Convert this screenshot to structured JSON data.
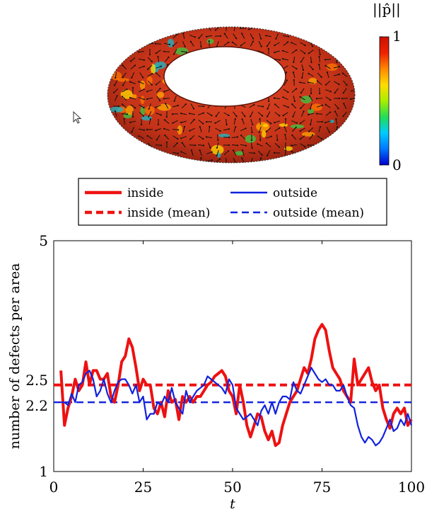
{
  "figure": {
    "colorbar": {
      "label": "||p̂||",
      "tick_max": "1",
      "tick_min": "0",
      "colors": [
        "#0000cc",
        "#0077ff",
        "#00ccff",
        "#22dd55",
        "#aaee00",
        "#ffdd00",
        "#ff8800",
        "#ee2200",
        "#cc1100"
      ]
    },
    "cursor_icon": "mouse-pointer-icon",
    "torus_icon": "torus-vector-field-render"
  },
  "chart_data": {
    "type": "line",
    "xlabel": "t",
    "ylabel": "number of defects per area",
    "xlim": [
      0,
      100
    ],
    "ylim": [
      1,
      5
    ],
    "xticks": [
      "0",
      "25",
      "50",
      "75",
      "100"
    ],
    "yticks": [
      "1",
      "2.2",
      "2.5",
      "5"
    ],
    "grid": false,
    "legend_placement": "top, above plot",
    "series": [
      {
        "name": "inside",
        "color": "#ee1111",
        "style": "solid",
        "x": [
          2,
          3,
          4,
          5,
          6,
          7,
          8,
          9,
          10,
          11,
          12,
          13,
          14,
          15,
          16,
          17,
          18,
          19,
          20,
          21,
          22,
          23,
          24,
          25,
          26,
          27,
          28,
          29,
          30,
          31,
          32,
          33,
          34,
          35,
          36,
          37,
          38,
          39,
          40,
          41,
          42,
          43,
          44,
          45,
          46,
          47,
          48,
          49,
          50,
          51,
          52,
          53,
          54,
          55,
          56,
          57,
          58,
          59,
          60,
          61,
          62,
          63,
          64,
          65,
          66,
          67,
          68,
          69,
          70,
          71,
          72,
          73,
          74,
          75,
          76,
          77,
          78,
          79,
          80,
          81,
          82,
          83,
          84,
          85,
          86,
          87,
          88,
          89,
          90,
          91,
          92,
          93,
          94,
          95,
          96,
          97,
          98,
          99,
          100
        ],
        "values": [
          2.75,
          1.8,
          2.1,
          2.3,
          2.6,
          2.4,
          2.5,
          2.9,
          2.5,
          2.75,
          2.75,
          2.6,
          2.6,
          2.7,
          2.3,
          2.2,
          2.5,
          2.9,
          3.0,
          3.3,
          3.15,
          2.8,
          2.4,
          2.6,
          2.5,
          2.5,
          2.1,
          2.0,
          2.2,
          1.95,
          2.4,
          2.2,
          2.25,
          1.9,
          2.3,
          2.2,
          2.3,
          2.2,
          2.3,
          2.3,
          2.4,
          2.5,
          2.55,
          2.65,
          2.7,
          2.75,
          2.65,
          2.4,
          2.3,
          2.0,
          2.5,
          2.2,
          1.8,
          1.6,
          1.8,
          2.0,
          1.95,
          1.7,
          1.55,
          1.7,
          1.45,
          1.5,
          1.8,
          2.0,
          2.2,
          2.3,
          2.4,
          2.6,
          2.8,
          2.7,
          2.95,
          3.3,
          3.45,
          3.55,
          3.45,
          3.1,
          2.8,
          2.7,
          2.6,
          2.4,
          2.3,
          2.2,
          2.95,
          2.5,
          2.6,
          2.7,
          2.8,
          2.55,
          2.4,
          2.5,
          2.1,
          1.9,
          1.75,
          2.0,
          2.1,
          2.0,
          2.1,
          1.8,
          1.9
        ],
        "mean": 2.5
      },
      {
        "name": "outside",
        "color": "#1122dd",
        "style": "solid",
        "x": [
          2,
          3,
          4,
          5,
          6,
          7,
          8,
          9,
          10,
          11,
          12,
          13,
          14,
          15,
          16,
          17,
          18,
          19,
          20,
          21,
          22,
          23,
          24,
          25,
          26,
          27,
          28,
          29,
          30,
          31,
          32,
          33,
          34,
          35,
          36,
          37,
          38,
          39,
          40,
          41,
          42,
          43,
          44,
          45,
          46,
          47,
          48,
          49,
          50,
          51,
          52,
          53,
          54,
          55,
          56,
          57,
          58,
          59,
          60,
          61,
          62,
          63,
          64,
          65,
          66,
          67,
          68,
          69,
          70,
          71,
          72,
          73,
          74,
          75,
          76,
          77,
          78,
          79,
          80,
          81,
          82,
          83,
          84,
          85,
          86,
          87,
          88,
          89,
          90,
          91,
          92,
          93,
          94,
          95,
          96,
          97,
          98,
          99,
          100
        ],
        "values": [
          2.2,
          2.2,
          2.15,
          2.35,
          2.2,
          2.5,
          2.55,
          2.7,
          2.75,
          2.6,
          2.3,
          2.4,
          2.6,
          2.35,
          2.2,
          2.4,
          2.55,
          2.6,
          2.6,
          2.5,
          2.35,
          2.5,
          2.2,
          2.3,
          1.9,
          2.0,
          2.0,
          2.2,
          2.15,
          2.3,
          2.2,
          2.45,
          2.2,
          2.1,
          2.0,
          2.4,
          2.2,
          2.3,
          2.4,
          2.45,
          2.5,
          2.65,
          2.6,
          2.55,
          2.5,
          2.45,
          2.35,
          2.6,
          2.5,
          2.1,
          2.0,
          1.9,
          1.95,
          2.0,
          1.9,
          1.8,
          2.05,
          2.15,
          2.0,
          2.2,
          2.0,
          2.2,
          2.3,
          2.3,
          2.25,
          2.55,
          2.4,
          2.35,
          2.5,
          2.65,
          2.8,
          2.7,
          2.6,
          2.55,
          2.6,
          2.5,
          2.5,
          2.4,
          2.4,
          2.5,
          2.3,
          2.15,
          2.1,
          1.8,
          1.6,
          1.5,
          1.6,
          1.55,
          1.45,
          1.5,
          1.6,
          1.75,
          1.9,
          1.7,
          1.75,
          1.9,
          1.8,
          2.0,
          1.8
        ],
        "mean": 2.2
      },
      {
        "name": "inside (mean)",
        "color": "#ee1111",
        "style": "dashed",
        "values": [
          2.5
        ]
      },
      {
        "name": "outside (mean)",
        "color": "#1122dd",
        "style": "dashed",
        "values": [
          2.2
        ]
      }
    ]
  }
}
